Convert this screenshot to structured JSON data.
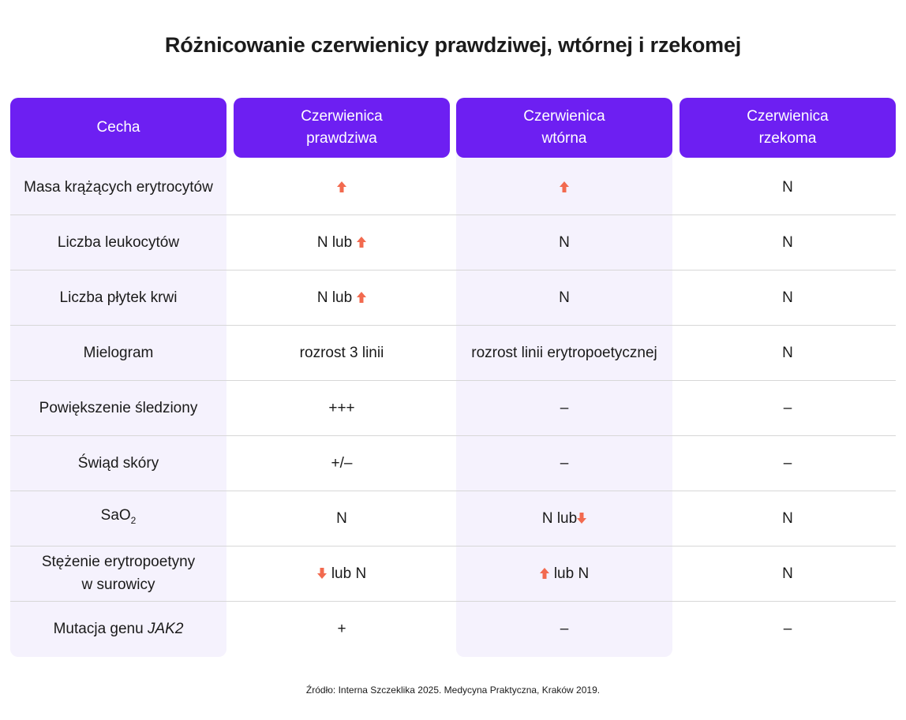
{
  "title": "Różnicowanie czerwienicy prawdziwej, wtórnej i rzekomej",
  "colors": {
    "header_bg": "#6d1ff2",
    "column_tint": "#f5f2fd",
    "arrow": "#f26a4f"
  },
  "headers": {
    "feature": "Cecha",
    "true_line1": "Czerwienica",
    "true_line2": "prawdziwa",
    "secondary_line1": "Czerwienica",
    "secondary_line2": "wtórna",
    "pseudo_line1": "Czerwienica",
    "pseudo_line2": "rzekoma"
  },
  "rows": [
    {
      "feature": "Masa krążących erytrocytów",
      "true": "",
      "secondary": "",
      "pseudo": "N"
    },
    {
      "feature": "Liczba leukocytów",
      "true": "N lub",
      "secondary": "N",
      "pseudo": "N"
    },
    {
      "feature": "Liczba płytek krwi",
      "true": "N lub",
      "secondary": "N",
      "pseudo": "N"
    },
    {
      "feature": "Mielogram",
      "true": "rozrost 3 linii",
      "secondary": "rozrost linii erytropoetycznej",
      "pseudo": "N"
    },
    {
      "feature": "Powiększenie śledziony",
      "true": "+++",
      "secondary": "–",
      "pseudo": "–"
    },
    {
      "feature": "Świąd skóry",
      "true": "+/–",
      "secondary": "–",
      "pseudo": "–"
    },
    {
      "feature_main": "SaO",
      "feature_sub": "2",
      "true": "N",
      "secondary": "N lub",
      "pseudo": "N"
    },
    {
      "feature_line1": "Stężenie erytropoetyny",
      "feature_line2": "w surowicy",
      "true": "lub N",
      "secondary": "lub N",
      "pseudo": "N"
    },
    {
      "feature_prefix": "Mutacja genu",
      "feature_gene": "JAK2",
      "true": "+",
      "secondary": "–",
      "pseudo": "–"
    }
  ],
  "arrow_icons": {
    "up": "arrow-up-icon",
    "down": "arrow-down-icon"
  },
  "footer": "Źródło: Interna Szczeklika 2025. Medycyna Praktyczna, Kraków 2019."
}
